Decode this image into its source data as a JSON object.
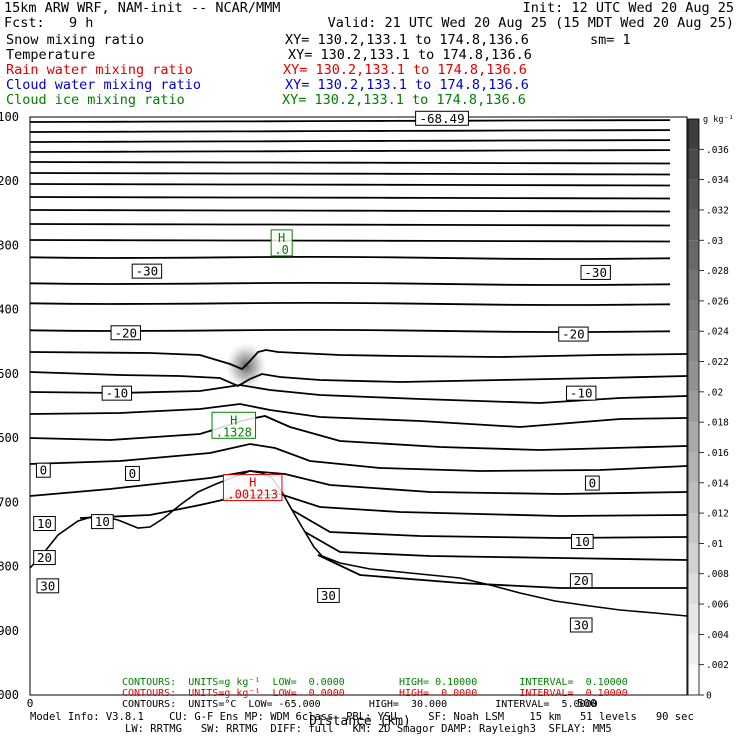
{
  "header": {
    "model_title": "15km ARW WRF, NAM-init -- NCAR/MMM",
    "init_label": "Init: 12 UTC Wed 20 Aug 25",
    "fcst_label": "Fcst:   9 h",
    "valid_label": "Valid: 21 UTC Wed 20 Aug 25 (15 MDT Wed 20 Aug 25)",
    "fields": [
      {
        "name": "Snow mixing ratio",
        "xy": "XY= 130.2,133.1 to 174.8,136.6",
        "extra": "sm= 1",
        "color": "#000000"
      },
      {
        "name": "Temperature",
        "xy": "XY= 130.2,133.1 to 174.8,136.6",
        "extra": "",
        "color": "#000000"
      },
      {
        "name": "Rain water mixing ratio",
        "xy": "XY= 130.2,133.1 to 174.8,136.6",
        "extra": "",
        "color": "#e00000"
      },
      {
        "name": "Cloud water mixing ratio",
        "xy": "XY= 130.2,133.1 to 174.8,136.6",
        "extra": "",
        "color": "#0000d0"
      },
      {
        "name": "Cloud ice mixing ratio",
        "xy": "XY= 130.2,133.1 to 174.8,136.6",
        "extra": "",
        "color": "#008000"
      }
    ]
  },
  "footer": {
    "contour_lines": [
      {
        "text": "CONTOURS:  UNITS=g kg⁻¹  LOW=  0.0000         HIGH= 0.10000       INTERVAL=  0.10000",
        "color": "#008000"
      },
      {
        "text": "CONTOURS:  UNITS=g kg⁻¹  LOW=  0.0000         HIGH=  0.0000       INTERVAL=  0.10000",
        "color": "#e00000"
      },
      {
        "text": "CONTOURS:  UNITS=°C  LOW= -65.000        HIGH=  30.000        INTERVAL=  5.0000",
        "color": "#000000"
      }
    ],
    "model_info_1": "Model Info: V3.8.1    CU: G-F Ens MP: WDM 6class  PBL: YSU     SF: Noah LSM    15 km   51 levels   90 sec",
    "model_info_2": "LW: RRTMG   SW: RRTMG  DIFF: full   KM: 2D Smagor DAMP: Rayleigh3  SFLAY: MM5"
  },
  "chart_data": {
    "type": "contour",
    "xlabel": "Distance (km)",
    "x_tick_labels": [
      "0",
      "500"
    ],
    "xlim": [
      0,
      590
    ],
    "y_tick_labels": [
      "100",
      "200",
      "300",
      "400",
      "500",
      "600",
      "700",
      "800",
      "900",
      "1000"
    ],
    "ylim": [
      100,
      1000
    ],
    "temperature_isotherms": {
      "units": "°C",
      "interval": 5,
      "labels": [
        {
          "text": "-68.49",
          "x": 370,
          "p": 102
        },
        {
          "text": "-30",
          "x": 105,
          "p": 340
        },
        {
          "text": "-30",
          "x": 508,
          "p": 342
        },
        {
          "text": "-20",
          "x": 86,
          "p": 436
        },
        {
          "text": "-20",
          "x": 488,
          "p": 438
        },
        {
          "text": "-10",
          "x": 78,
          "p": 530
        },
        {
          "text": "-10",
          "x": 495,
          "p": 530
        },
        {
          "text": "0",
          "x": 12,
          "p": 650
        },
        {
          "text": "0",
          "x": 92,
          "p": 655
        },
        {
          "text": "0",
          "x": 505,
          "p": 670
        },
        {
          "text": "10",
          "x": 13,
          "p": 733
        },
        {
          "text": "10",
          "x": 65,
          "p": 730
        },
        {
          "text": "10",
          "x": 496,
          "p": 761
        },
        {
          "text": "20",
          "x": 13,
          "p": 786
        },
        {
          "text": "20",
          "x": 495,
          "p": 822
        },
        {
          "text": "30",
          "x": 16,
          "p": 830
        },
        {
          "text": "30",
          "x": 268,
          "p": 845
        },
        {
          "text": "30",
          "x": 495,
          "p": 891
        }
      ]
    },
    "extrema": [
      {
        "label": "H",
        "value": ".0",
        "field": "Cloud ice mixing ratio",
        "x": 226,
        "p": 296,
        "color": "#008000"
      },
      {
        "label": "H",
        "value": ".1328",
        "field": "Cloud ice mixing ratio",
        "x": 183,
        "p": 580,
        "color": "#008000"
      },
      {
        "label": "H",
        "value": ".001213",
        "field": "Rain water mixing ratio",
        "x": 200,
        "p": 677,
        "color": "#e00000"
      }
    ],
    "colorbar": {
      "units": "g kg⁻¹",
      "field": "Snow mixing ratio",
      "tick_labels": [
        ".036",
        ".034",
        ".032",
        ".03",
        ".028",
        ".026",
        ".024",
        ".022",
        ".02",
        ".018",
        ".016",
        ".014",
        ".012",
        ".01",
        ".008",
        ".006",
        ".004",
        ".002",
        "0"
      ],
      "range": [
        0,
        0.038
      ]
    }
  }
}
